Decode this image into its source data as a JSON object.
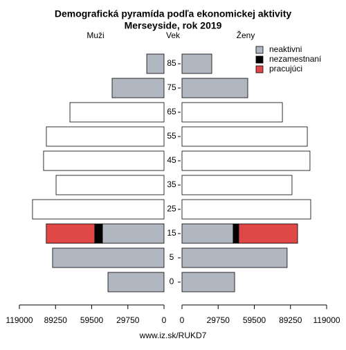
{
  "chart_data": {
    "type": "pyramid",
    "title": "Demografická pyramída podľa ekonomickej aktivity",
    "subtitle": "Merseyside, rok 2019",
    "left_label": "Muži",
    "center_label": "Vek",
    "right_label": "Ženy",
    "footer": "www.iz.sk/RUKD7",
    "categories": [
      "0",
      "5",
      "15",
      "25",
      "35",
      "45",
      "55",
      "65",
      "75",
      "85"
    ],
    "series": [
      {
        "name": "neaktivni",
        "color": "#b0b7c0",
        "values_men": [
          46100,
          91700,
          50700,
          null,
          null,
          null,
          null,
          null,
          42700,
          14200
        ],
        "values_women": [
          43300,
          86500,
          42100,
          null,
          null,
          null,
          null,
          null,
          54100,
          24500
        ]
      },
      {
        "name": "nezamestnaní",
        "color": "#000000",
        "values_men": [
          null,
          null,
          6300,
          null,
          null,
          null,
          null,
          null,
          null,
          null
        ],
        "values_women": [
          null,
          null,
          4600,
          null,
          null,
          null,
          null,
          null,
          null,
          null
        ]
      },
      {
        "name": "pracujúci",
        "color": "#e04848",
        "values_men": [
          null,
          null,
          39900,
          null,
          null,
          null,
          null,
          null,
          null,
          null
        ],
        "values_women": [
          null,
          null,
          48400,
          null,
          null,
          null,
          null,
          null,
          null,
          null
        ]
      }
    ],
    "unsplit": {
      "color": "#ffffff",
      "values_men": [
        null,
        null,
        null,
        108200,
        88800,
        99100,
        96800,
        77400,
        null,
        null
      ],
      "values_women": [
        null,
        null,
        null,
        105900,
        90500,
        105300,
        103100,
        82600,
        null,
        null
      ]
    },
    "xlim": [
      0,
      119000
    ],
    "xticks": [
      0,
      29750,
      59500,
      89250,
      119000
    ],
    "legend": "top-right"
  }
}
